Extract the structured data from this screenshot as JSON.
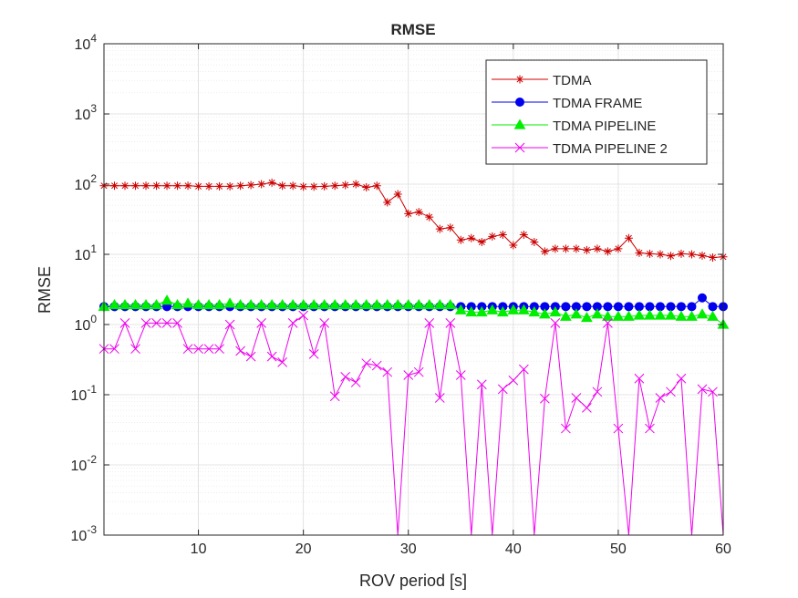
{
  "chart_data": {
    "type": "line",
    "title": "RMSE",
    "xlabel": "ROV period [s]",
    "ylabel": "RMSE",
    "xlim": [
      1,
      60
    ],
    "ylim": [
      0.001,
      10000
    ],
    "yscale": "log",
    "grid": true,
    "minor_grid": true,
    "legend_position": "top-right",
    "x_ticks": [
      10,
      20,
      30,
      40,
      50,
      60
    ],
    "y_ticks": [
      {
        "value": 0.001,
        "base": "10",
        "exp": "-3"
      },
      {
        "value": 0.01,
        "base": "10",
        "exp": "-2"
      },
      {
        "value": 0.1,
        "base": "10",
        "exp": "-1"
      },
      {
        "value": 1,
        "base": "10",
        "exp": "0"
      },
      {
        "value": 10,
        "base": "10",
        "exp": "1"
      },
      {
        "value": 100,
        "base": "10",
        "exp": "2"
      },
      {
        "value": 1000,
        "base": "10",
        "exp": "3"
      },
      {
        "value": 10000,
        "base": "10",
        "exp": "4"
      }
    ],
    "x": [
      1,
      2,
      3,
      4,
      5,
      6,
      7,
      8,
      9,
      10,
      11,
      12,
      13,
      14,
      15,
      16,
      17,
      18,
      19,
      20,
      21,
      22,
      23,
      24,
      25,
      26,
      27,
      28,
      29,
      30,
      31,
      32,
      33,
      34,
      35,
      36,
      37,
      38,
      39,
      40,
      41,
      42,
      43,
      44,
      45,
      46,
      47,
      48,
      49,
      50,
      51,
      52,
      53,
      54,
      55,
      56,
      57,
      58,
      59,
      60
    ],
    "series": [
      {
        "name": "TDMA",
        "color": "#cc0000",
        "marker": "asterisk",
        "values": [
          95,
          95,
          95,
          95,
          95,
          95,
          95,
          95,
          95,
          93,
          93,
          93,
          93,
          95,
          97,
          100,
          105,
          95,
          95,
          92,
          92,
          93,
          95,
          97,
          100,
          90,
          95,
          55,
          72,
          38,
          40,
          34,
          23,
          24,
          16,
          17,
          15,
          18,
          19,
          13.5,
          19,
          15,
          11,
          12,
          12,
          12,
          11.5,
          12,
          11,
          12,
          17,
          10.5,
          10.2,
          10,
          9.5,
          10.2,
          10,
          9.6,
          9,
          9.2
        ]
      },
      {
        "name": "TDMA FRAME",
        "color": "#0000ee",
        "marker": "circle",
        "values": [
          1.8,
          1.8,
          1.8,
          1.8,
          1.8,
          1.8,
          1.8,
          1.8,
          1.8,
          1.8,
          1.8,
          1.8,
          1.8,
          1.8,
          1.8,
          1.8,
          1.8,
          1.8,
          1.8,
          1.8,
          1.8,
          1.8,
          1.8,
          1.8,
          1.8,
          1.8,
          1.8,
          1.8,
          1.8,
          1.8,
          1.8,
          1.8,
          1.8,
          1.8,
          1.8,
          1.8,
          1.8,
          1.8,
          1.8,
          1.8,
          1.8,
          1.8,
          1.8,
          1.8,
          1.8,
          1.8,
          1.8,
          1.8,
          1.8,
          1.8,
          1.8,
          1.8,
          1.8,
          1.8,
          1.8,
          1.8,
          1.8,
          2.4,
          1.8,
          1.8
        ]
      },
      {
        "name": "TDMA PIPELINE",
        "color": "#00ee00",
        "marker": "triangle",
        "values": [
          1.8,
          1.9,
          1.9,
          1.9,
          1.9,
          1.9,
          2.2,
          1.9,
          2.0,
          1.9,
          1.9,
          1.9,
          2.0,
          1.9,
          1.9,
          1.9,
          1.9,
          1.9,
          1.9,
          1.9,
          1.9,
          1.9,
          1.9,
          1.9,
          1.9,
          1.9,
          1.9,
          1.9,
          1.9,
          1.9,
          1.9,
          1.9,
          1.9,
          1.9,
          1.6,
          1.5,
          1.5,
          1.6,
          1.5,
          1.6,
          1.6,
          1.5,
          1.4,
          1.5,
          1.3,
          1.4,
          1.25,
          1.4,
          1.3,
          1.3,
          1.3,
          1.35,
          1.35,
          1.35,
          1.35,
          1.3,
          1.3,
          1.4,
          1.3,
          1.0
        ]
      },
      {
        "name": "TDMA PIPELINE 2",
        "color": "#ee00ee",
        "marker": "x",
        "values": [
          0.45,
          0.45,
          1.05,
          0.45,
          1.05,
          1.05,
          1.05,
          1.05,
          0.45,
          0.45,
          0.45,
          0.45,
          1.0,
          0.42,
          0.35,
          1.05,
          0.35,
          0.29,
          1.05,
          1.35,
          0.38,
          1.05,
          0.095,
          0.18,
          0.15,
          0.28,
          0.26,
          0.21,
          0.0001,
          0.19,
          0.21,
          1.05,
          0.09,
          1.05,
          0.19,
          0.0001,
          0.14,
          0.0001,
          0.12,
          0.16,
          0.23,
          0.0001,
          0.088,
          1.05,
          0.033,
          0.09,
          0.065,
          0.11,
          1.05,
          0.033,
          0.0001,
          0.17,
          0.033,
          0.09,
          0.11,
          0.17,
          0.0001,
          0.12,
          0.11,
          0.0001
        ]
      }
    ]
  }
}
